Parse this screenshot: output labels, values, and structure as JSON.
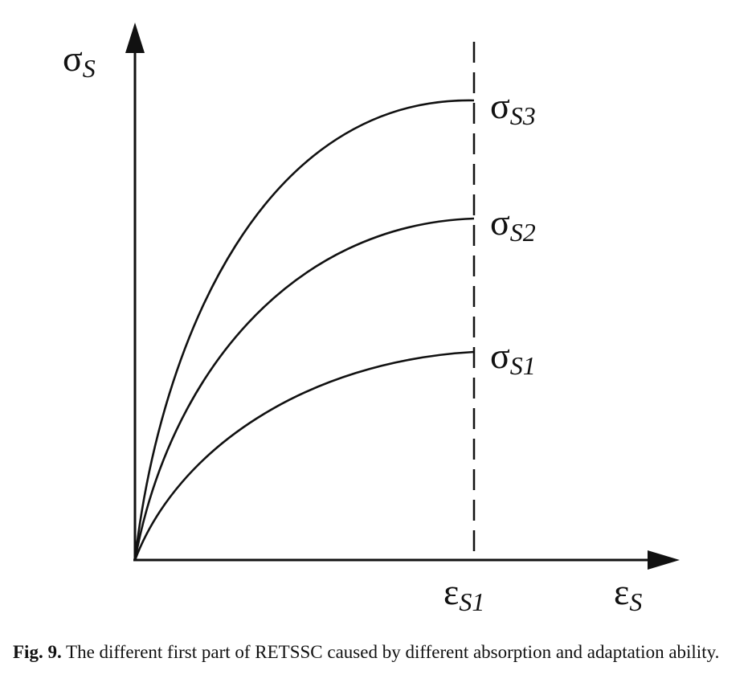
{
  "diagram": {
    "y_axis_label": {
      "symbol": "σ",
      "subscript": "S"
    },
    "x_axis_label": {
      "symbol": "ε",
      "subscript": "S"
    },
    "limit_marker": {
      "symbol": "ε",
      "subscript": "S1"
    },
    "curves": [
      {
        "symbol": "σ",
        "subscript": "S3"
      },
      {
        "symbol": "σ",
        "subscript": "S2"
      },
      {
        "symbol": "σ",
        "subscript": "S1"
      }
    ]
  },
  "caption": {
    "label": "Fig. 9.",
    "text": " The different first part of RETSSC caused by different absorption and adaptation ability."
  }
}
